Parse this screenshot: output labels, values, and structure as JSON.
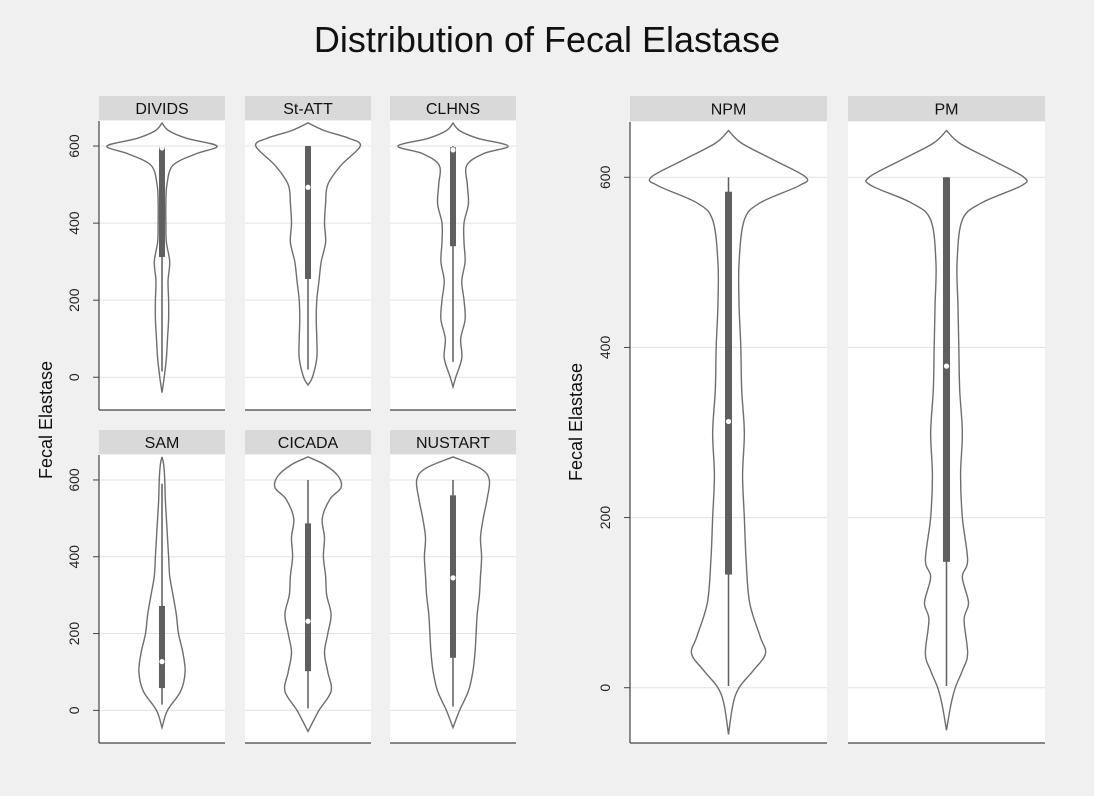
{
  "title": "Distribution of Fecal Elastase",
  "chart_data": [
    {
      "type": "violin",
      "title": "Distribution of Fecal Elastase",
      "ylabel": "Fecal Elastase",
      "ylim": [
        -85,
        665
      ],
      "yticks": [
        0,
        200,
        400,
        600
      ],
      "grid": true,
      "panels": [
        {
          "name": "DIVIDS",
          "min": 15,
          "q1": 312,
          "median": 595,
          "q3": 597,
          "max": 600,
          "density": [
            [
              -40,
              0
            ],
            [
              0,
              0.04
            ],
            [
              50,
              0.08
            ],
            [
              100,
              0.1
            ],
            [
              150,
              0.12
            ],
            [
              200,
              0.12
            ],
            [
              250,
              0.11
            ],
            [
              300,
              0.14
            ],
            [
              350,
              0.08
            ],
            [
              400,
              0.07
            ],
            [
              450,
              0.07
            ],
            [
              500,
              0.09
            ],
            [
              550,
              0.2
            ],
            [
              580,
              0.62
            ],
            [
              600,
              1.0
            ],
            [
              620,
              0.45
            ],
            [
              640,
              0.12
            ],
            [
              660,
              0
            ]
          ]
        },
        {
          "name": "St-ATT",
          "min": 20,
          "q1": 255,
          "median": 493,
          "q3": 600,
          "max": 600,
          "density": [
            [
              -20,
              0
            ],
            [
              0,
              0.08
            ],
            [
              50,
              0.16
            ],
            [
              100,
              0.16
            ],
            [
              150,
              0.15
            ],
            [
              200,
              0.16
            ],
            [
              250,
              0.2
            ],
            [
              300,
              0.24
            ],
            [
              350,
              0.32
            ],
            [
              400,
              0.3
            ],
            [
              450,
              0.32
            ],
            [
              500,
              0.36
            ],
            [
              550,
              0.6
            ],
            [
              600,
              0.95
            ],
            [
              620,
              0.75
            ],
            [
              640,
              0.3
            ],
            [
              660,
              0
            ]
          ]
        },
        {
          "name": "CLHNS",
          "min": 40,
          "q1": 340,
          "median": 590,
          "q3": 597,
          "max": 600,
          "density": [
            [
              -25,
              0
            ],
            [
              0,
              0.05
            ],
            [
              50,
              0.16
            ],
            [
              100,
              0.14
            ],
            [
              150,
              0.22
            ],
            [
              200,
              0.2
            ],
            [
              250,
              0.16
            ],
            [
              300,
              0.22
            ],
            [
              350,
              0.2
            ],
            [
              400,
              0.2
            ],
            [
              450,
              0.28
            ],
            [
              500,
              0.26
            ],
            [
              550,
              0.25
            ],
            [
              580,
              0.55
            ],
            [
              600,
              1.0
            ],
            [
              620,
              0.45
            ],
            [
              640,
              0.12
            ],
            [
              660,
              0
            ]
          ]
        }
      ]
    },
    {
      "type": "violin",
      "ylabel": "Fecal Elastase",
      "ylim": [
        -85,
        665
      ],
      "yticks": [
        0,
        200,
        400,
        600
      ],
      "grid": true,
      "panels": [
        {
          "name": "SAM",
          "min": 15,
          "q1": 58,
          "median": 127,
          "q3": 272,
          "max": 590,
          "density": [
            [
              -45,
              0
            ],
            [
              0,
              0.1
            ],
            [
              50,
              0.34
            ],
            [
              100,
              0.42
            ],
            [
              150,
              0.38
            ],
            [
              200,
              0.3
            ],
            [
              250,
              0.26
            ],
            [
              300,
              0.2
            ],
            [
              350,
              0.14
            ],
            [
              400,
              0.12
            ],
            [
              450,
              0.1
            ],
            [
              500,
              0.08
            ],
            [
              550,
              0.06
            ],
            [
              600,
              0.05
            ],
            [
              640,
              0.03
            ],
            [
              660,
              0
            ]
          ]
        },
        {
          "name": "CICADA",
          "min": 5,
          "q1": 102,
          "median": 232,
          "q3": 487,
          "max": 600,
          "density": [
            [
              -55,
              0
            ],
            [
              0,
              0.2
            ],
            [
              50,
              0.42
            ],
            [
              100,
              0.36
            ],
            [
              150,
              0.3
            ],
            [
              200,
              0.36
            ],
            [
              250,
              0.42
            ],
            [
              300,
              0.34
            ],
            [
              350,
              0.32
            ],
            [
              400,
              0.28
            ],
            [
              450,
              0.3
            ],
            [
              500,
              0.26
            ],
            [
              550,
              0.4
            ],
            [
              580,
              0.6
            ],
            [
              610,
              0.55
            ],
            [
              640,
              0.3
            ],
            [
              660,
              0
            ]
          ]
        },
        {
          "name": "NUSTART",
          "min": 10,
          "q1": 137,
          "median": 345,
          "q3": 560,
          "max": 600,
          "density": [
            [
              -45,
              0
            ],
            [
              0,
              0.12
            ],
            [
              50,
              0.28
            ],
            [
              100,
              0.36
            ],
            [
              150,
              0.4
            ],
            [
              200,
              0.42
            ],
            [
              250,
              0.44
            ],
            [
              300,
              0.48
            ],
            [
              350,
              0.5
            ],
            [
              400,
              0.52
            ],
            [
              450,
              0.5
            ],
            [
              500,
              0.55
            ],
            [
              550,
              0.62
            ],
            [
              600,
              0.66
            ],
            [
              630,
              0.5
            ],
            [
              660,
              0
            ]
          ]
        }
      ]
    },
    {
      "type": "violin",
      "ylabel": "Fecal Elastase",
      "ylim": [
        -65,
        665
      ],
      "yticks": [
        0,
        200,
        400,
        600
      ],
      "grid": true,
      "panels": [
        {
          "name": "NPM",
          "min": 2,
          "q1": 133,
          "median": 313,
          "q3": 583,
          "max": 600,
          "density": [
            [
              -55,
              0
            ],
            [
              -20,
              0.05
            ],
            [
              0,
              0.12
            ],
            [
              20,
              0.28
            ],
            [
              40,
              0.42
            ],
            [
              60,
              0.36
            ],
            [
              100,
              0.24
            ],
            [
              150,
              0.2
            ],
            [
              200,
              0.18
            ],
            [
              250,
              0.16
            ],
            [
              300,
              0.18
            ],
            [
              350,
              0.15
            ],
            [
              400,
              0.14
            ],
            [
              450,
              0.12
            ],
            [
              500,
              0.12
            ],
            [
              550,
              0.18
            ],
            [
              570,
              0.36
            ],
            [
              590,
              0.8
            ],
            [
              600,
              0.88
            ],
            [
              620,
              0.52
            ],
            [
              640,
              0.15
            ],
            [
              655,
              0
            ]
          ]
        },
        {
          "name": "PM",
          "min": 2,
          "q1": 148,
          "median": 378,
          "q3": 600,
          "max": 600,
          "density": [
            [
              -50,
              0
            ],
            [
              -20,
              0.05
            ],
            [
              0,
              0.1
            ],
            [
              20,
              0.18
            ],
            [
              40,
              0.24
            ],
            [
              80,
              0.2
            ],
            [
              100,
              0.25
            ],
            [
              130,
              0.18
            ],
            [
              150,
              0.24
            ],
            [
              200,
              0.18
            ],
            [
              250,
              0.16
            ],
            [
              300,
              0.18
            ],
            [
              350,
              0.15
            ],
            [
              400,
              0.14
            ],
            [
              450,
              0.13
            ],
            [
              500,
              0.12
            ],
            [
              550,
              0.18
            ],
            [
              570,
              0.4
            ],
            [
              590,
              0.85
            ],
            [
              600,
              0.88
            ],
            [
              620,
              0.52
            ],
            [
              640,
              0.15
            ],
            [
              655,
              0
            ]
          ]
        }
      ]
    }
  ]
}
